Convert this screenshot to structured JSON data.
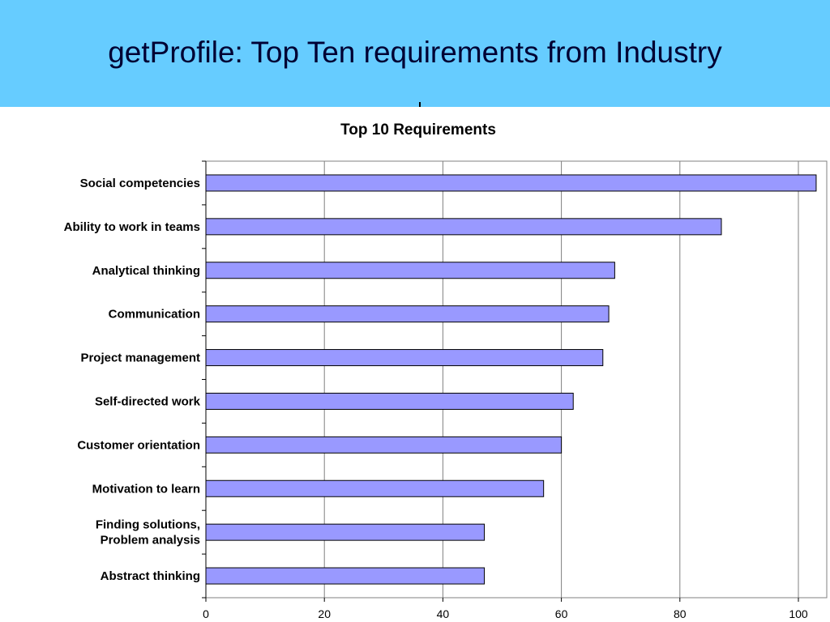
{
  "slide": {
    "title": "getProfile: Top Ten requirements from Industry",
    "banner_color": "#66ccff"
  },
  "chart_data": {
    "type": "bar",
    "orientation": "horizontal",
    "title": "Top 10 Requirements",
    "categories": [
      "Social competencies",
      "Ability to work in teams",
      "Analytical thinking",
      "Communication",
      "Project management",
      "Self-directed work",
      "Customer orientation",
      "Motivation to learn",
      "Finding solutions, Problem analysis",
      "Abstract thinking"
    ],
    "category_lines": [
      [
        "Social competencies"
      ],
      [
        "Ability to work in teams"
      ],
      [
        "Analytical thinking"
      ],
      [
        "Communication"
      ],
      [
        "Project management"
      ],
      [
        "Self-directed work"
      ],
      [
        "Customer orientation"
      ],
      [
        "Motivation to learn"
      ],
      [
        "Finding solutions,",
        "Problem analysis"
      ],
      [
        "Abstract thinking"
      ]
    ],
    "values": [
      103,
      87,
      69,
      68,
      67,
      62,
      60,
      57,
      47,
      47
    ],
    "xlim": [
      0,
      105
    ],
    "xticks": [
      0,
      20,
      40,
      60,
      80,
      100
    ],
    "grid": true,
    "legend": "none",
    "bar_color": "#9999ff",
    "xlabel": "",
    "ylabel": ""
  }
}
